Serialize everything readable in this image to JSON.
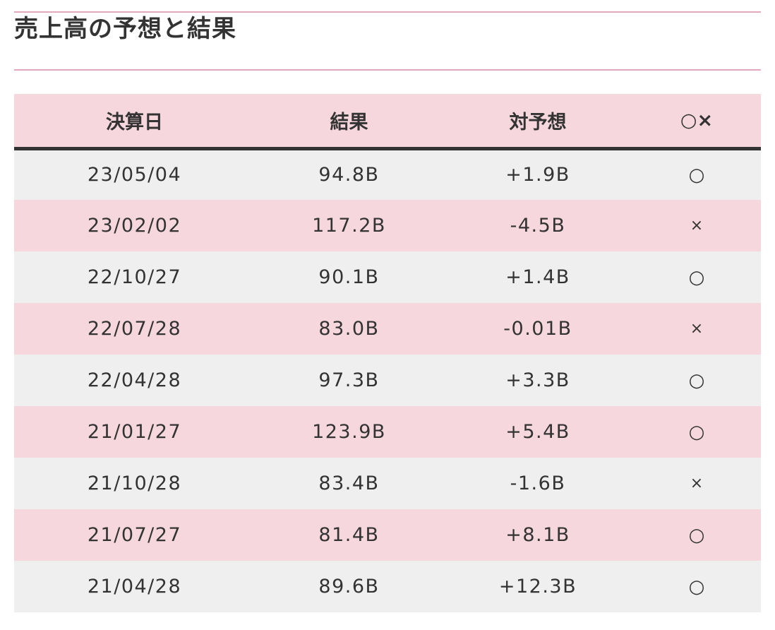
{
  "section": {
    "title": "売上高の予想と結果"
  },
  "table": {
    "headers": [
      "決算日",
      "結果",
      "対予想",
      "○×"
    ],
    "rows": [
      {
        "date": "23/05/04",
        "result": "94.8B",
        "vs_forecast": "+1.9B",
        "mark": "○"
      },
      {
        "date": "23/02/02",
        "result": "117.2B",
        "vs_forecast": "-4.5B",
        "mark": "×"
      },
      {
        "date": "22/10/27",
        "result": "90.1B",
        "vs_forecast": "+1.4B",
        "mark": "○"
      },
      {
        "date": "22/07/28",
        "result": "83.0B",
        "vs_forecast": "-0.01B",
        "mark": "×"
      },
      {
        "date": "22/04/28",
        "result": "97.3B",
        "vs_forecast": "+3.3B",
        "mark": "○"
      },
      {
        "date": "21/01/27",
        "result": "123.9B",
        "vs_forecast": "+5.4B",
        "mark": "○"
      },
      {
        "date": "21/10/28",
        "result": "83.4B",
        "vs_forecast": "-1.6B",
        "mark": "×"
      },
      {
        "date": "21/07/27",
        "result": "81.4B",
        "vs_forecast": "+8.1B",
        "mark": "○"
      },
      {
        "date": "21/04/28",
        "result": "89.6B",
        "vs_forecast": "+12.3B",
        "mark": "○"
      }
    ]
  },
  "colors": {
    "accent_line": "#e3a9bb",
    "row_pink": "#f5d7dd",
    "row_gray": "#efefef",
    "text": "#333333"
  }
}
